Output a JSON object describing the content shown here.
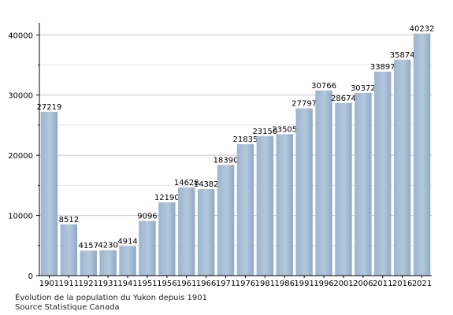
{
  "chart_data": {
    "type": "bar",
    "categories": [
      "1901",
      "1911",
      "1921",
      "1931",
      "1941",
      "1951",
      "1956",
      "1961",
      "1966",
      "1971",
      "1976",
      "1981",
      "1986",
      "1991",
      "1996",
      "2001",
      "2006",
      "2011",
      "2016",
      "2021"
    ],
    "values": [
      27219,
      8512,
      4157,
      4230,
      4914,
      9096,
      12190,
      14628,
      14382,
      18390,
      21835,
      23150,
      23505,
      27797,
      30766,
      28674,
      30372,
      33897,
      35874,
      40232
    ],
    "data_labels": [
      "27219",
      "8512",
      "4157",
      "4230",
      "4914",
      "9096",
      "12190",
      "14628",
      "14382",
      "18390",
      "21835",
      "23150",
      "23505",
      "27797",
      "30766",
      "28674",
      "30372",
      "33897",
      "35874",
      "40232"
    ],
    "y_ticks": [
      "0",
      "10000",
      "20000",
      "30000",
      "40000"
    ],
    "ylim": [
      0,
      42000
    ],
    "bar_color": "#9db5cf",
    "grid": true
  },
  "caption": {
    "line1": "Évolution de la population du Yukon depuis 1901",
    "line2": "Source Statistique Canada"
  }
}
